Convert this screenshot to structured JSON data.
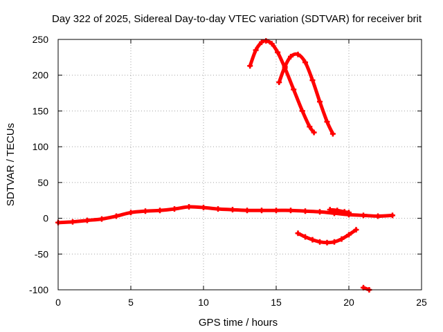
{
  "chart_data": {
    "type": "line",
    "title": "Day 322 of 2025, Sidereal Day-to-day VTEC variation (SDTVAR) for receiver brit",
    "xlabel": "GPS time / hours",
    "ylabel": "SDTVAR / TECUs",
    "xlim": [
      0,
      25
    ],
    "ylim": [
      -100,
      250
    ],
    "xticks": [
      0,
      5,
      10,
      15,
      20,
      25
    ],
    "yticks": [
      -100,
      -50,
      0,
      50,
      100,
      150,
      200,
      250
    ],
    "xtick_labels": [
      "0",
      "5",
      "10",
      "15",
      "20",
      "25"
    ],
    "ytick_labels": [
      "-100",
      "-50",
      "0",
      "50",
      "100",
      "150",
      "200",
      "250"
    ],
    "grid": true,
    "color": "#ff0000",
    "series": [
      {
        "name": "main-trace",
        "x": [
          0,
          1,
          2,
          3,
          4,
          5,
          6,
          7,
          8,
          9,
          10,
          11,
          12,
          13,
          14,
          15,
          16,
          17,
          18,
          19,
          20,
          21,
          22,
          23
        ],
        "y": [
          -6,
          -5,
          -3,
          -1,
          3,
          8,
          10,
          11,
          13,
          16,
          15,
          13,
          12,
          11,
          11,
          11,
          11,
          10,
          9,
          7,
          5,
          4,
          3,
          4
        ]
      },
      {
        "name": "upper-arc-1",
        "x": [
          13.2,
          13.6,
          14.0,
          14.3,
          14.7,
          15.1,
          15.6,
          16.2,
          16.8,
          17.3,
          17.6
        ],
        "y": [
          213,
          235,
          246,
          248,
          244,
          232,
          210,
          180,
          150,
          128,
          120
        ]
      },
      {
        "name": "upper-arc-2",
        "x": [
          15.2,
          15.6,
          16.0,
          16.5,
          17.0,
          17.5,
          18.0,
          18.5,
          18.9
        ],
        "y": [
          190,
          212,
          226,
          229,
          218,
          193,
          163,
          135,
          118
        ]
      },
      {
        "name": "lower-arc",
        "x": [
          16.5,
          17.0,
          17.5,
          18.0,
          18.5,
          19.0,
          19.5,
          20.0,
          20.5
        ],
        "y": [
          -21,
          -26,
          -30,
          -33,
          -34,
          -33,
          -29,
          -23,
          -16
        ]
      },
      {
        "name": "late-segment",
        "x": [
          18.7,
          19.2,
          19.7,
          20.0
        ],
        "y": [
          12,
          11,
          9,
          8
        ]
      },
      {
        "name": "final-point",
        "x": [
          21.0,
          21.4
        ],
        "y": [
          -97,
          -100
        ]
      }
    ]
  }
}
